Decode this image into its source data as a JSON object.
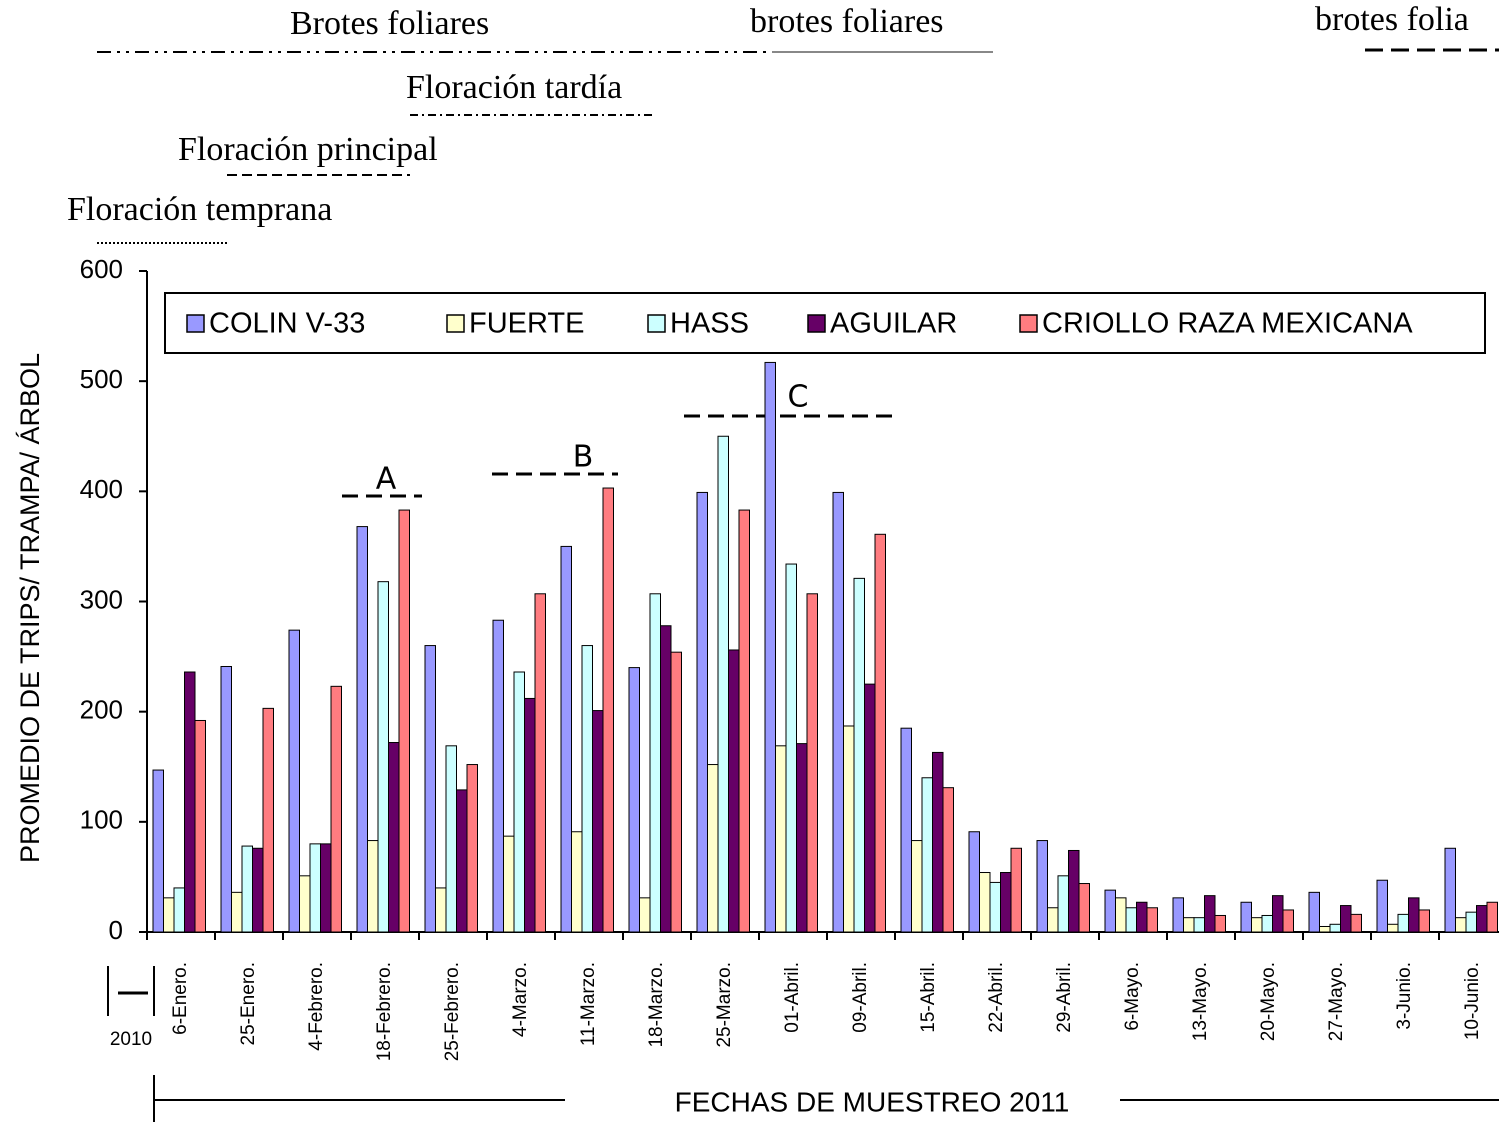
{
  "chart_data": {
    "type": "bar",
    "ylabel": "PROMEDIO DE TRIPS/ TRAMPA/ ÁRBOL",
    "xlabel": "FECHAS DE MUESTREO 2011",
    "year_note": "2010",
    "annotations": [
      "Brotes foliares",
      "brotes foliares",
      "brotes folia",
      "Floración tardía",
      "Floración principal",
      "Floración temprana",
      "A",
      "B",
      "C"
    ],
    "categories": [
      "6-Enero.",
      "25-Enero.",
      "4-Febrero.",
      "18-Febrero.",
      "25-Febrero.",
      "4-Marzo.",
      "11-Marzo.",
      "18-Marzo.",
      "25-Marzo.",
      "01-Abril.",
      "09-Abril.",
      "15-Abril.",
      "22-Abril.",
      "29-Abril.",
      "6-Mayo.",
      "13-Mayo.",
      "20-Mayo.",
      "27-Mayo.",
      "3-Junio.",
      "10-Junio."
    ],
    "series": [
      {
        "name": "COLIN  V-33",
        "color": "#9999ff",
        "values": [
          147,
          241,
          274,
          368,
          260,
          283,
          350,
          240,
          399,
          517,
          399,
          185,
          91,
          83,
          38,
          31,
          27,
          36,
          47,
          76
        ]
      },
      {
        "name": "FUERTE",
        "color": "#ffffcc",
        "values": [
          31,
          36,
          51,
          83,
          40,
          87,
          91,
          31,
          152,
          169,
          187,
          83,
          54,
          22,
          31,
          13,
          13,
          5,
          7,
          13
        ]
      },
      {
        "name": "HASS",
        "color": "#ccffff",
        "values": [
          40,
          78,
          80,
          318,
          169,
          236,
          260,
          307,
          450,
          334,
          321,
          140,
          45,
          51,
          22,
          13,
          15,
          7,
          16,
          18
        ]
      },
      {
        "name": "AGUILAR",
        "color": "#660066",
        "values": [
          236,
          76,
          80,
          172,
          129,
          212,
          201,
          278,
          256,
          171,
          225,
          163,
          54,
          74,
          27,
          33,
          33,
          24,
          31,
          24
        ]
      },
      {
        "name": "CRIOLLO  RAZA MEXICANA",
        "color": "#ff7c80",
        "values": [
          192,
          203,
          223,
          383,
          152,
          307,
          403,
          254,
          383,
          307,
          361,
          131,
          76,
          44,
          22,
          15,
          20,
          16,
          20,
          27
        ]
      }
    ],
    "ylim": [
      0,
      600
    ],
    "yticks": [
      0,
      100,
      200,
      300,
      400,
      500,
      600
    ],
    "grid": false
  }
}
